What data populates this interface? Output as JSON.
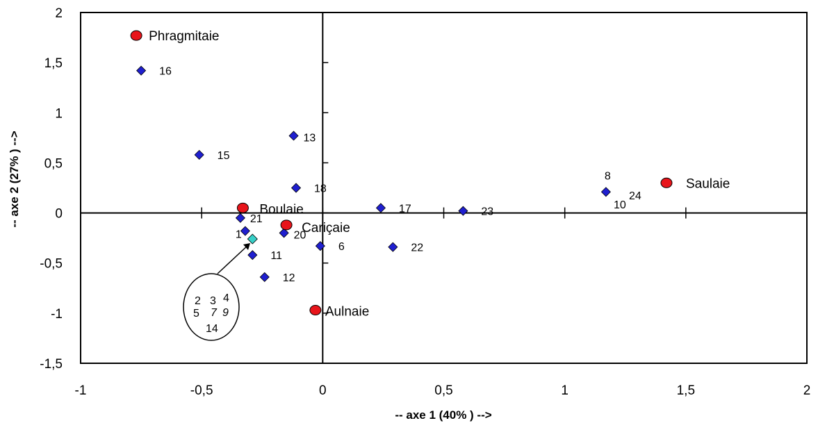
{
  "chart_data": {
    "type": "scatter",
    "title": "",
    "xlabel": "-- axe 1 (40% ) -->",
    "ylabel": "-- axe 2 (27% ) -->",
    "xlim": [
      -1,
      2
    ],
    "ylim": [
      -1.5,
      2
    ],
    "xticks": [
      "-1",
      "-0,5",
      "0",
      "0,5",
      "1",
      "1,5",
      "2"
    ],
    "yticks": [
      "-1,5",
      "-1",
      "-0,5",
      "0",
      "0,5",
      "1",
      "1,5",
      "2"
    ],
    "grid": false,
    "legend": "none",
    "series": [
      {
        "marker": "diamond",
        "color": "#1f1fcf",
        "points": [
          {
            "label": "16",
            "x": -0.75,
            "y": 1.42
          },
          {
            "label": "15",
            "x": -0.51,
            "y": 0.58
          },
          {
            "label": "13",
            "x": -0.12,
            "y": 0.77
          },
          {
            "label": "18",
            "x": -0.11,
            "y": 0.25
          },
          {
            "label": "17",
            "x": 0.24,
            "y": 0.05
          },
          {
            "label": "23",
            "x": 0.58,
            "y": 0.02
          },
          {
            "label": "8",
            "x": 1.17,
            "y": 0.21
          },
          {
            "label": "21",
            "x": -0.34,
            "y": -0.05
          },
          {
            "label": "20",
            "x": -0.16,
            "y": -0.2
          },
          {
            "label": "6",
            "x": -0.01,
            "y": -0.33
          },
          {
            "label": "22",
            "x": 0.29,
            "y": -0.34
          },
          {
            "label": "11",
            "x": -0.29,
            "y": -0.42
          },
          {
            "label": "12",
            "x": -0.24,
            "y": -0.64
          },
          {
            "label": "1",
            "x": -0.32,
            "y": -0.18
          }
        ]
      },
      {
        "marker": "circle",
        "color": "#e8151b",
        "points": [
          {
            "label": "Phragmitaie",
            "x": -0.77,
            "y": 1.77
          },
          {
            "label": "Saulaie",
            "x": 1.42,
            "y": 0.3
          },
          {
            "label": "Boulaie",
            "x": -0.33,
            "y": 0.05
          },
          {
            "label": "Cariçaie",
            "x": -0.15,
            "y": -0.12
          },
          {
            "label": "Aulnaie",
            "x": -0.03,
            "y": -0.97
          }
        ]
      }
    ],
    "annotations": {
      "extra_labels": [
        "24",
        "10"
      ],
      "group_point_color": "#37d0c8",
      "group_members": [
        "2",
        "3",
        "4",
        "5",
        "7",
        "9",
        "14"
      ]
    }
  }
}
